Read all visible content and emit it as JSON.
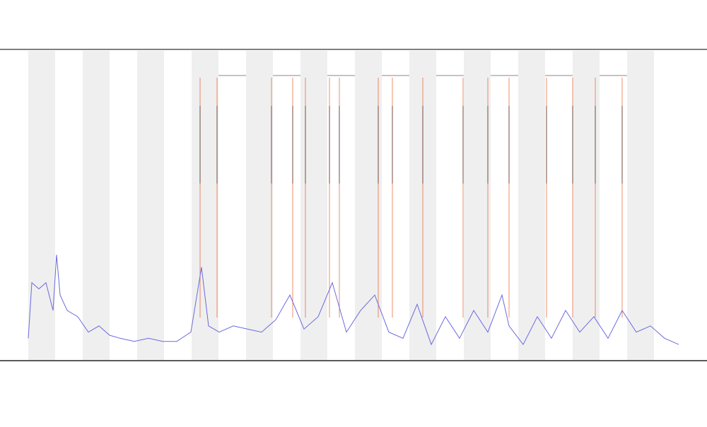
{
  "chart_data": {
    "type": "line",
    "x": [
      0,
      5,
      15,
      25,
      35,
      40,
      45,
      55,
      70,
      85,
      100,
      115,
      130,
      150,
      170,
      190,
      210,
      230,
      245,
      255,
      270,
      290,
      310,
      330,
      350,
      370,
      390,
      410,
      430,
      450,
      470,
      490,
      510,
      530,
      550,
      570,
      590,
      610,
      630,
      650,
      670,
      680,
      700,
      720,
      740,
      760,
      780,
      800,
      820,
      840,
      860,
      880,
      900,
      920
    ],
    "series": [
      {
        "color": "#6a6ae0",
        "values": [
          7,
          25,
          23,
          25,
          16,
          34,
          21,
          16,
          14,
          9,
          11,
          8,
          7,
          6,
          7,
          6,
          6,
          9,
          30,
          11,
          9,
          11,
          10,
          9,
          13,
          21,
          10,
          14,
          25,
          9,
          16,
          21,
          9,
          7,
          18,
          5,
          14,
          7,
          16,
          9,
          21,
          11,
          5,
          14,
          7,
          16,
          9,
          14,
          7,
          16,
          9,
          11,
          7,
          5
        ]
      }
    ],
    "events": [
      243,
      267,
      344,
      374,
      392,
      426,
      440,
      495,
      515,
      558,
      615,
      650,
      680,
      733,
      770,
      802,
      840
    ],
    "event_color": "#e8602c",
    "xlim": [
      0,
      920
    ],
    "ylim": [
      0,
      100
    ]
  }
}
